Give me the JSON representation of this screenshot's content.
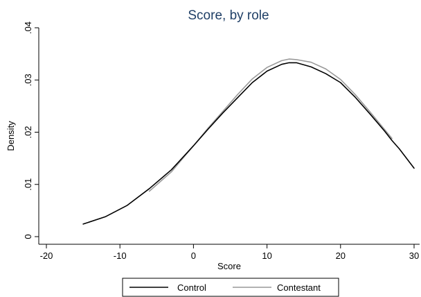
{
  "chart_data": {
    "type": "line",
    "title": "Score, by role",
    "xlabel": "Score",
    "ylabel": "Density",
    "xlim": [
      -20,
      30
    ],
    "ylim": [
      0,
      0.04
    ],
    "x_ticks": [
      -20,
      -10,
      0,
      10,
      20,
      30
    ],
    "x_tick_labels": [
      "-20",
      "-10",
      "0",
      "10",
      "20",
      "30"
    ],
    "y_ticks": [
      0,
      0.01,
      0.02,
      0.03,
      0.04
    ],
    "y_tick_labels": [
      "0",
      ".01",
      ".02",
      ".03",
      ".04"
    ],
    "grid": false,
    "legend_position": "bottom",
    "series": [
      {
        "name": "Control",
        "color": "#000000",
        "x": [
          -15,
          -12,
          -9,
          -6,
          -3,
          0,
          2,
          4,
          6,
          8,
          10,
          12,
          13,
          14,
          16,
          18,
          20,
          22,
          24,
          26,
          27,
          28,
          30
        ],
        "y": [
          0.0024,
          0.0038,
          0.006,
          0.0092,
          0.0128,
          0.0174,
          0.0206,
          0.0237,
          0.0266,
          0.0295,
          0.0317,
          0.033,
          0.0333,
          0.0333,
          0.0325,
          0.0312,
          0.0295,
          0.0267,
          0.0235,
          0.0202,
          0.0184,
          0.0168,
          0.0131
        ]
      },
      {
        "name": "Contestant",
        "color": "#999999",
        "x": [
          -6,
          -3,
          0,
          2,
          4,
          6,
          8,
          10,
          12,
          13,
          14,
          16,
          18,
          20,
          22,
          24,
          26,
          27
        ],
        "y": [
          0.0087,
          0.0124,
          0.0174,
          0.0208,
          0.024,
          0.0272,
          0.0302,
          0.0324,
          0.0337,
          0.034,
          0.0339,
          0.0334,
          0.0321,
          0.0301,
          0.0272,
          0.0239,
          0.0205,
          0.0188
        ]
      }
    ]
  }
}
